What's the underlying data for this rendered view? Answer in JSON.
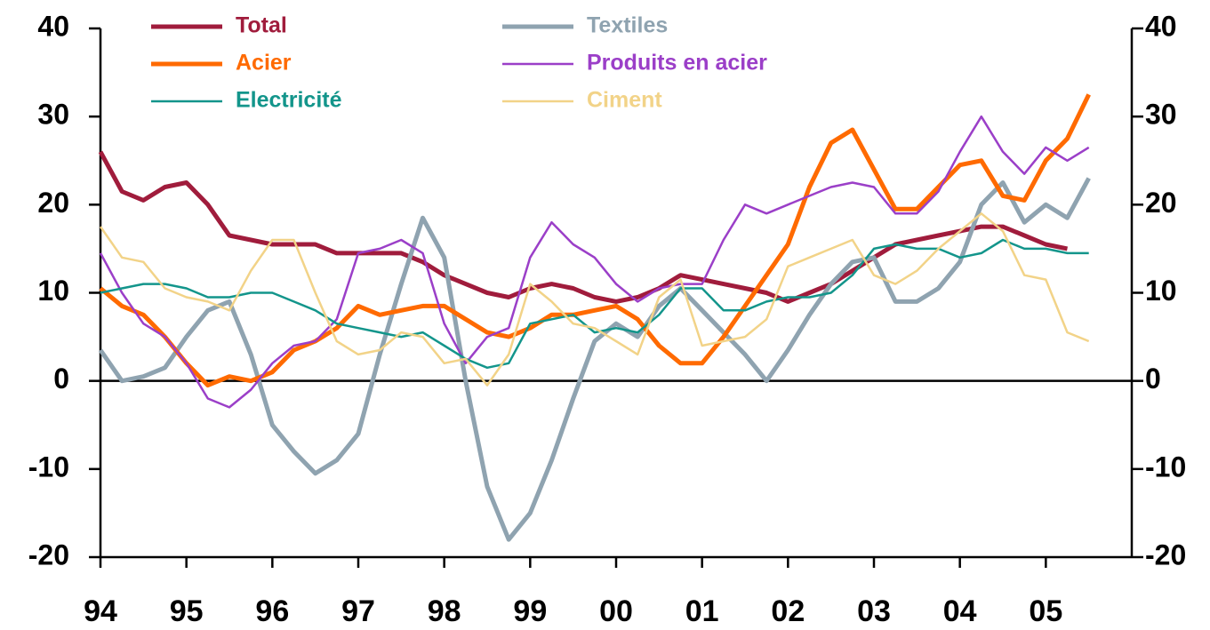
{
  "chart_data": {
    "type": "line",
    "x": [
      1994,
      1994.25,
      1994.5,
      1994.75,
      1995,
      1995.25,
      1995.5,
      1995.75,
      1996,
      1996.25,
      1996.5,
      1996.75,
      1997,
      1997.25,
      1997.5,
      1997.75,
      1998,
      1998.25,
      1998.5,
      1998.75,
      1999,
      1999.25,
      1999.5,
      1999.75,
      2000,
      2000.25,
      2000.5,
      2000.75,
      2001,
      2001.25,
      2001.5,
      2001.75,
      2002,
      2002.25,
      2002.5,
      2002.75,
      2003,
      2003.25,
      2003.5,
      2003.75,
      2004,
      2004.25,
      2004.5,
      2004.75,
      2005,
      2005.25,
      2005.5
    ],
    "series": [
      {
        "name": "Total",
        "color": "#a01c3c",
        "values": [
          26,
          21.5,
          20.5,
          22,
          22.5,
          20,
          16.5,
          16,
          15.5,
          15.5,
          15.5,
          14.5,
          14.5,
          14.5,
          14.5,
          13.5,
          12,
          11,
          10,
          9.5,
          10.5,
          11,
          10.5,
          9.5,
          9,
          9.5,
          10.5,
          12,
          11.5,
          11,
          10.5,
          10,
          9,
          10,
          11,
          12.5,
          14,
          15.5,
          16,
          16.5,
          17,
          17.5,
          17.5,
          16.5,
          15.5,
          15,
          null
        ]
      },
      {
        "name": "Textiles",
        "color": "#8fa3b0",
        "values": [
          3.5,
          0,
          0.5,
          1.5,
          5,
          8,
          9,
          3,
          -5,
          -8,
          -10.5,
          -9,
          -6,
          3,
          11,
          18.5,
          14,
          0,
          -12,
          -18,
          -15,
          -9,
          -2,
          4.5,
          6.5,
          5,
          8.5,
          10.5,
          8,
          5.5,
          3,
          0,
          3.5,
          7.5,
          11,
          13.5,
          14,
          9,
          9,
          10.5,
          13.5,
          20,
          22.5,
          18,
          20,
          18.5,
          23
        ]
      },
      {
        "name": "Acier",
        "color": "#ff6a00",
        "values": [
          10.5,
          8.5,
          7.5,
          5,
          2,
          -0.5,
          0.5,
          0,
          1,
          3.5,
          4.5,
          6,
          8.5,
          7.5,
          8,
          8.5,
          8.5,
          7,
          5.5,
          5,
          6,
          7.5,
          7.5,
          8,
          8.5,
          7,
          4,
          2,
          2,
          5,
          8.5,
          12,
          15.5,
          22,
          27,
          28.5,
          24,
          19.5,
          19.5,
          22,
          24.5,
          25,
          21,
          20.5,
          25,
          27.5,
          32.5
        ]
      },
      {
        "name": "Produits en acier",
        "color": "#9b3fc8",
        "values": [
          14.5,
          10,
          6.5,
          5,
          2,
          -2,
          -3,
          -1,
          2,
          4,
          4.5,
          7,
          14.5,
          15,
          16,
          14.5,
          6.5,
          2,
          5,
          6,
          14,
          18,
          15.5,
          14,
          11,
          9,
          10.5,
          11,
          11,
          16,
          20,
          19,
          20,
          21,
          22,
          22.5,
          22,
          19,
          19,
          21.5,
          26,
          30,
          26,
          23.5,
          26.5,
          25,
          26.5
        ]
      },
      {
        "name": "Electricité",
        "color": "#13958b",
        "values": [
          10,
          10.5,
          11,
          11,
          10.5,
          9.5,
          9.5,
          10,
          10,
          9,
          8,
          6.5,
          6,
          5.5,
          5,
          5.5,
          4,
          2.5,
          1.5,
          2,
          6.5,
          7,
          7.5,
          5.5,
          6,
          5.5,
          7.5,
          10.5,
          10.5,
          8,
          8,
          9,
          9.5,
          9.5,
          10,
          12,
          15,
          15.5,
          15,
          15,
          14,
          14.5,
          16,
          15,
          15,
          14.5,
          14.5
        ]
      },
      {
        "name": "Ciment",
        "color": "#f2d388",
        "values": [
          17.5,
          14,
          13.5,
          10.5,
          9.5,
          9,
          8,
          12.5,
          16,
          16,
          10,
          4.5,
          3,
          3.5,
          5.5,
          5,
          2,
          2.5,
          -0.5,
          3,
          11,
          9,
          6.5,
          6,
          4.5,
          3,
          9.5,
          11.5,
          4,
          4.5,
          5,
          7,
          13,
          14,
          15,
          16,
          12,
          11,
          12.5,
          15,
          17,
          19,
          17,
          12,
          11.5,
          5.5,
          4.5
        ]
      }
    ],
    "xlim": [
      1994,
      2006
    ],
    "xticks": [
      {
        "value": 1994,
        "label": "94"
      },
      {
        "value": 1995,
        "label": "95"
      },
      {
        "value": 1996,
        "label": "96"
      },
      {
        "value": 1997,
        "label": "97"
      },
      {
        "value": 1998,
        "label": "98"
      },
      {
        "value": 1999,
        "label": "99"
      },
      {
        "value": 2000,
        "label": "00"
      },
      {
        "value": 2001,
        "label": "01"
      },
      {
        "value": 2002,
        "label": "02"
      },
      {
        "value": 2003,
        "label": "03"
      },
      {
        "value": 2004,
        "label": "04"
      },
      {
        "value": 2005,
        "label": "05"
      }
    ],
    "ylim": [
      -20,
      40
    ],
    "yticks": [
      -20,
      -10,
      0,
      10,
      20,
      30,
      40
    ],
    "y2lim": [
      -20,
      40
    ],
    "y2ticks": [
      -20,
      -10,
      0,
      10,
      20,
      30,
      40
    ]
  }
}
